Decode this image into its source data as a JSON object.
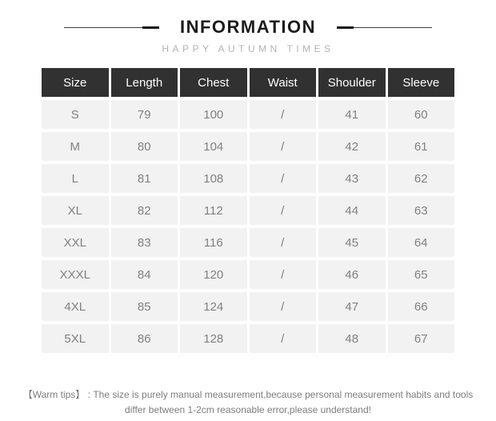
{
  "header": {
    "title": "INFORMATION",
    "subtitle": "HAPPY AUTUMN TIMES"
  },
  "size_table": {
    "columns": [
      "Size",
      "Length",
      "Chest",
      "Waist",
      "Shoulder",
      "Sleeve"
    ],
    "rows": [
      [
        "S",
        "79",
        "100",
        "/",
        "41",
        "60"
      ],
      [
        "M",
        "80",
        "104",
        "/",
        "42",
        "61"
      ],
      [
        "L",
        "81",
        "108",
        "/",
        "43",
        "62"
      ],
      [
        "XL",
        "82",
        "112",
        "/",
        "44",
        "63"
      ],
      [
        "XXL",
        "83",
        "116",
        "/",
        "45",
        "64"
      ],
      [
        "XXXL",
        "84",
        "120",
        "/",
        "46",
        "65"
      ],
      [
        "4XL",
        "85",
        "124",
        "/",
        "47",
        "66"
      ],
      [
        "5XL",
        "86",
        "128",
        "/",
        "48",
        "67"
      ]
    ]
  },
  "footer": {
    "warm_tips_label": "【Warm tips】",
    "warm_tips_separator": " : ",
    "warm_tips_line1": "The size is purely manual measurement,because personal measurement habits and tools",
    "warm_tips_line2": "differ between 1-2cm reasonable error,please understand!"
  },
  "colors": {
    "header_cell_bg": "#313131",
    "header_cell_text": "#ffffff",
    "body_cell_bg": "#f2f2f2",
    "body_cell_text": "#818181",
    "title_text": "#1c1c1c",
    "subtitle_text": "#b3b3b3",
    "tips_text": "#7d7d7d"
  }
}
